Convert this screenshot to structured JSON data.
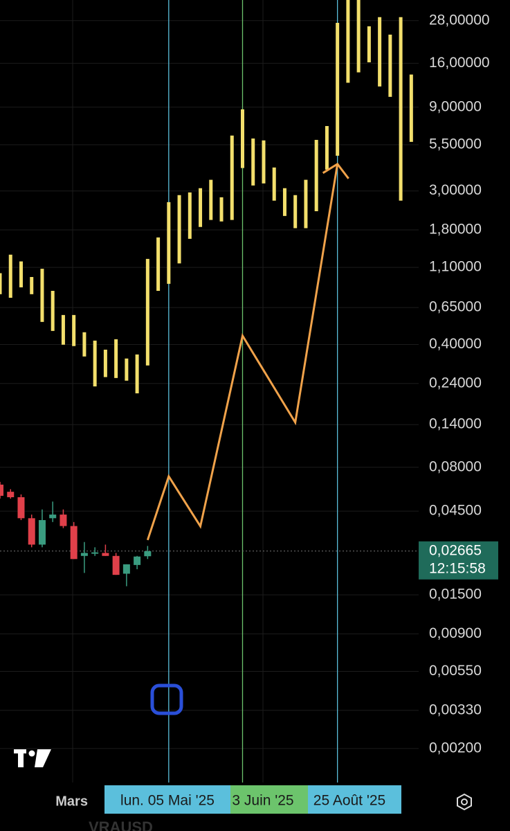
{
  "chart_data": {
    "type": "candlestick",
    "symbol": "VRAUSD",
    "log_scale": true,
    "xlim": [
      0,
      39.7
    ],
    "ylim": [
      0.00128,
      36.7
    ],
    "yticks": [
      {
        "value": 28,
        "label": "28,00000"
      },
      {
        "value": 16,
        "label": "16,00000"
      },
      {
        "value": 9,
        "label": "9,00000"
      },
      {
        "value": 5.5,
        "label": "5,50000"
      },
      {
        "value": 3,
        "label": "3,00000"
      },
      {
        "value": 1.8,
        "label": "1,80000"
      },
      {
        "value": 1.1,
        "label": "1,10000"
      },
      {
        "value": 0.65,
        "label": "0,65000"
      },
      {
        "value": 0.4,
        "label": "0,40000"
      },
      {
        "value": 0.24,
        "label": "0,24000"
      },
      {
        "value": 0.14,
        "label": "0,14000"
      },
      {
        "value": 0.08,
        "label": "0,08000"
      },
      {
        "value": 0.045,
        "label": "0,04500"
      },
      {
        "value": 0.015,
        "label": "0,01500"
      },
      {
        "value": 0.009,
        "label": "0,00900"
      },
      {
        "value": 0.0055,
        "label": "0,00550"
      },
      {
        "value": 0.0033,
        "label": "0,00330"
      },
      {
        "value": 0.002,
        "label": "0,00200"
      }
    ],
    "xticks": [
      {
        "value": 6.8,
        "label": "Mars"
      }
    ],
    "candles": {
      "x": [
        0,
        1,
        2,
        3,
        4,
        5,
        6,
        7,
        8,
        9,
        10,
        11,
        12,
        13,
        14
      ],
      "open": [
        0.0637,
        0.058,
        0.054,
        0.041,
        0.029,
        0.041,
        0.043,
        0.037,
        0.025,
        0.026,
        0.026,
        0.025,
        0.0198,
        0.0222,
        0.0249
      ],
      "high": [
        0.066,
        0.06,
        0.056,
        0.043,
        0.046,
        0.051,
        0.046,
        0.039,
        0.03,
        0.028,
        0.029,
        0.026,
        0.0224,
        0.025,
        0.0285
      ],
      "low": [
        0.053,
        0.053,
        0.04,
        0.028,
        0.028,
        0.039,
        0.036,
        0.024,
        0.02,
        0.025,
        0.025,
        0.0195,
        0.0168,
        0.021,
        0.024
      ],
      "close": [
        0.055,
        0.054,
        0.041,
        0.029,
        0.04,
        0.043,
        0.037,
        0.024,
        0.026,
        0.0262,
        0.025,
        0.0195,
        0.0224,
        0.0248,
        0.0266
      ],
      "up_color": "#3a9c80",
      "down_color": "#e0404a"
    },
    "projection_bars": {
      "color": "#f3df6c",
      "x": [
        0,
        1,
        2,
        3,
        4,
        5,
        6,
        7,
        8,
        9,
        10,
        11,
        12,
        13,
        14,
        15,
        16,
        17,
        18,
        19,
        20,
        21,
        22,
        23,
        24,
        25,
        26,
        27,
        28,
        29,
        30,
        31,
        32,
        33,
        34,
        35,
        36,
        37,
        38,
        39
      ],
      "high": [
        1.02,
        1.3,
        1.19,
        0.97,
        1.08,
        0.809,
        0.589,
        0.589,
        0.47,
        0.421,
        0.374,
        0.429,
        0.333,
        0.351,
        1.23,
        1.63,
        2.59,
        2.84,
        2.94,
        3.11,
        3.47,
        2.76,
        6.2,
        8.75,
        5.97,
        5.82,
        4.08,
        3.11,
        2.84,
        3.47,
        5.86,
        7.03,
        27.2,
        36.7,
        36.7,
        26,
        29.3,
        23.3,
        29.3,
        13.8
      ],
      "low": [
        0.774,
        0.739,
        0.847,
        0.774,
        0.538,
        0.478,
        0.399,
        0.392,
        0.342,
        0.231,
        0.261,
        0.258,
        0.249,
        0.211,
        0.304,
        0.809,
        0.887,
        1.16,
        1.6,
        1.87,
        2.05,
        2.01,
        2.05,
        4.05,
        3.22,
        3.31,
        2.64,
        2.16,
        1.84,
        1.84,
        2.3,
        3.97,
        4.76,
        12.4,
        14.2,
        16.2,
        11.8,
        10.3,
        2.64,
        5.71
      ]
    },
    "path_line": {
      "color": "#f0a24a",
      "x": [
        14,
        16,
        19,
        23,
        28,
        32
      ],
      "values": [
        0.0308,
        0.071,
        0.0369,
        0.449,
        0.144,
        4.27
      ]
    },
    "markers": [
      {
        "x": 16,
        "label": "lun. 05 Mai '25",
        "color": "#5bbfdc"
      },
      {
        "x": 23,
        "label": "3 Juin '25",
        "color": "#6cc46c"
      },
      {
        "x": 32,
        "label": "25 Août '25",
        "color": "#5bbfdc"
      }
    ],
    "last_price": {
      "value": 0.02665,
      "label": "0,02665",
      "countdown": "12:15:58",
      "color": "#1f6b5a"
    }
  }
}
